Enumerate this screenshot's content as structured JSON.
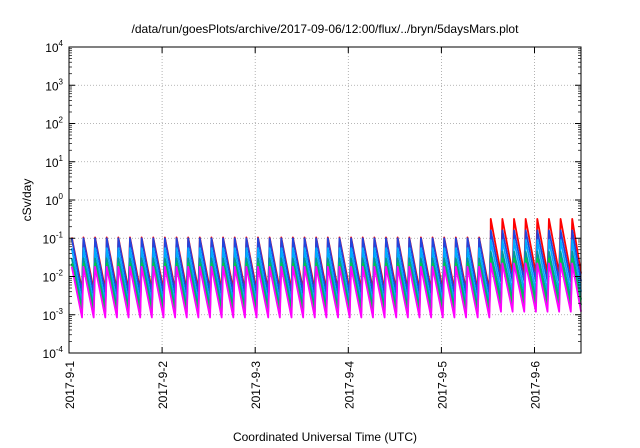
{
  "chart_data": {
    "type": "line",
    "title": "/data/run/goesPlots/archive/2017-09-06/12:00/flux/../bryn/5daysMars.plot",
    "xlabel": "Coordinated Universal Time (UTC)",
    "ylabel": "cSv/day",
    "y_scale": "log",
    "ylim": [
      0.0001,
      10000
    ],
    "y_ticks": [
      {
        "base": "10",
        "exp": "-4"
      },
      {
        "base": "10",
        "exp": "-3"
      },
      {
        "base": "10",
        "exp": "-2"
      },
      {
        "base": "10",
        "exp": "-1"
      },
      {
        "base": "10",
        "exp": "0"
      },
      {
        "base": "10",
        "exp": "1"
      },
      {
        "base": "10",
        "exp": "2"
      },
      {
        "base": "10",
        "exp": "3"
      },
      {
        "base": "10",
        "exp": "4"
      }
    ],
    "xlim": [
      "2017-09-01",
      "2017-09-06 12:00"
    ],
    "x_ticks": [
      "2017-9-1",
      "2017-9-2",
      "2017-9-3",
      "2017-9-4",
      "2017-9-5",
      "2017-9-6"
    ],
    "grid": true,
    "legend": "none",
    "orbit_period_hours": 3.0,
    "series": [
      {
        "color": "#ff0000",
        "peak_before": 0.105,
        "peak_after": 0.32,
        "trough_before": 0.0045,
        "trough_after": 0.012
      },
      {
        "color": "#2244dd",
        "peak_before": 0.1,
        "peak_after": 0.16,
        "trough_before": 0.0035,
        "trough_after": 0.0075
      },
      {
        "color": "#00aaff",
        "peak_before": 0.055,
        "peak_after": 0.09,
        "trough_before": 0.002,
        "trough_after": 0.004
      },
      {
        "color": "#009999",
        "peak_before": 0.03,
        "peak_after": 0.045,
        "trough_before": 0.0015,
        "trough_after": 0.0025
      },
      {
        "color": "#00cc44",
        "peak_before": 0.022,
        "peak_after": 0.03,
        "trough_before": 0.0012,
        "trough_after": 0.0018
      },
      {
        "color": "#ff00ff",
        "peak_before": 0.018,
        "peak_after": 0.022,
        "trough_before": 0.00085,
        "trough_after": 0.0012
      }
    ]
  }
}
